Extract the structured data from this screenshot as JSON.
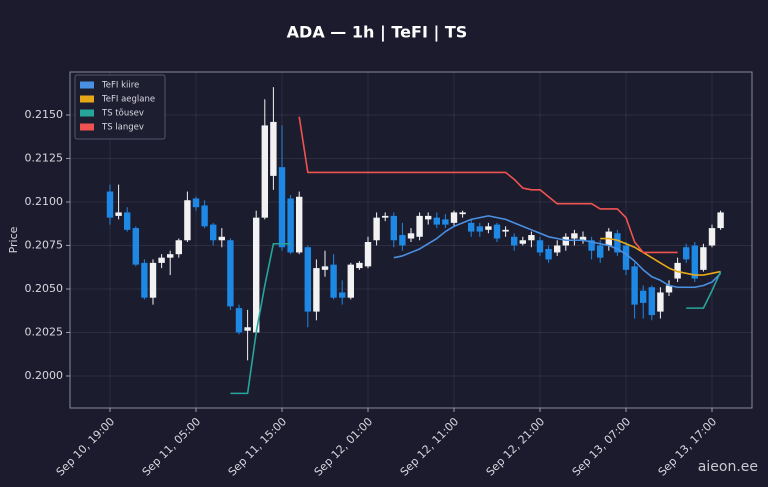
{
  "chart_data": {
    "type": "candlestick",
    "title": "ADA — 1h  |  TeFI  |  TS",
    "y_label": "Price",
    "watermark": "aieon.ee",
    "up_color": "#f2f2f2",
    "down_color": "#1e88e5",
    "grid": true,
    "legend": "upper-left",
    "ylim": [
      0.19816,
      0.21747
    ],
    "yticks": [
      {
        "value": 0.2,
        "label": "0.2000"
      },
      {
        "value": 0.2025,
        "label": "0.2025"
      },
      {
        "value": 0.205,
        "label": "0.2050"
      },
      {
        "value": 0.2075,
        "label": "0.2075"
      },
      {
        "value": 0.21,
        "label": "0.2100"
      },
      {
        "value": 0.2125,
        "label": "0.2125"
      },
      {
        "value": 0.215,
        "label": "0.2150"
      }
    ],
    "categories": [
      "Sep 10, 19:00",
      null,
      null,
      null,
      null,
      null,
      null,
      null,
      null,
      null,
      "Sep 11, 05:00",
      null,
      null,
      null,
      null,
      null,
      null,
      null,
      null,
      null,
      "Sep 11, 15:00",
      null,
      null,
      null,
      null,
      null,
      null,
      null,
      null,
      null,
      "Sep 12, 01:00",
      null,
      null,
      null,
      null,
      null,
      null,
      null,
      null,
      null,
      "Sep 12, 11:00",
      null,
      null,
      null,
      null,
      null,
      null,
      null,
      null,
      null,
      "Sep 12, 21:00",
      null,
      null,
      null,
      null,
      null,
      null,
      null,
      null,
      null,
      "Sep 13, 07:00",
      null,
      null,
      null,
      null,
      null,
      null,
      null,
      null,
      null,
      "Sep 13, 17:00",
      null
    ],
    "open": [
      0.2106,
      0.2092,
      0.2094,
      0.2085,
      0.2065,
      0.2045,
      0.2065,
      0.2068,
      0.207,
      0.2078,
      0.2102,
      0.2098,
      0.2087,
      0.2078,
      0.2078,
      0.2039,
      0.2026,
      0.2025,
      0.2091,
      0.2115,
      0.212,
      0.2102,
      0.2071,
      0.2074,
      0.2037,
      0.2061,
      0.2064,
      0.2048,
      0.2045,
      0.2062,
      0.2063,
      0.2078,
      0.2091,
      0.2092,
      0.2081,
      0.2079,
      0.208,
      0.209,
      0.2091,
      0.209,
      0.2088,
      0.2093,
      0.2088,
      0.2086,
      0.2084,
      0.2087,
      0.2083,
      0.208,
      0.2076,
      0.2078,
      0.2078,
      0.2073,
      0.2071,
      0.2075,
      0.2079,
      0.2078,
      0.2078,
      0.2075,
      0.2075,
      0.2082,
      0.2075,
      0.2063,
      0.2049,
      0.2051,
      0.2037,
      0.2048,
      0.2056,
      0.2074,
      0.2075,
      0.2061,
      0.2075,
      0.2085
    ],
    "high": [
      0.211,
      0.211,
      0.2097,
      0.2086,
      0.2067,
      0.2067,
      0.207,
      0.2072,
      0.2079,
      0.2106,
      0.2103,
      0.2101,
      0.2088,
      0.2085,
      0.2079,
      0.2041,
      0.2038,
      0.2095,
      0.2159,
      0.2166,
      0.2144,
      0.2104,
      0.2106,
      0.2075,
      0.2067,
      0.2072,
      0.207,
      0.2055,
      0.2065,
      0.2066,
      0.208,
      0.2094,
      0.2094,
      0.2094,
      0.2088,
      0.2085,
      0.2094,
      0.2094,
      0.2094,
      0.2093,
      0.2095,
      0.2095,
      0.209,
      0.2088,
      0.2088,
      0.2088,
      0.2086,
      0.2082,
      0.208,
      0.2083,
      0.208,
      0.2075,
      0.2078,
      0.2082,
      0.2084,
      0.2083,
      0.208,
      0.2078,
      0.2085,
      0.2084,
      0.2077,
      0.2065,
      0.2052,
      0.2052,
      0.2051,
      0.2055,
      0.2068,
      0.2076,
      0.2077,
      0.2076,
      0.2087,
      0.2095
    ],
    "low": [
      0.2087,
      0.209,
      0.2083,
      0.2063,
      0.2044,
      0.2041,
      0.2062,
      0.2058,
      0.2068,
      0.2077,
      0.2095,
      0.2085,
      0.2075,
      0.2074,
      0.2038,
      0.2024,
      0.2009,
      0.2024,
      0.209,
      0.2107,
      0.2072,
      0.207,
      0.207,
      0.2028,
      0.2032,
      0.2057,
      0.2044,
      0.2041,
      0.2044,
      0.2061,
      0.2062,
      0.2075,
      0.2089,
      0.2074,
      0.2072,
      0.2077,
      0.2078,
      0.2087,
      0.2085,
      0.2085,
      0.2086,
      0.2091,
      0.208,
      0.208,
      0.2082,
      0.2077,
      0.208,
      0.2072,
      0.2075,
      0.2074,
      0.2069,
      0.2065,
      0.2069,
      0.2072,
      0.2075,
      0.2076,
      0.2067,
      0.2065,
      0.2072,
      0.2069,
      0.2058,
      0.2033,
      0.2033,
      0.2032,
      0.2033,
      0.2046,
      0.2054,
      0.2065,
      0.2054,
      0.206,
      0.2074,
      0.2084
    ],
    "close": [
      0.2091,
      0.2094,
      0.2084,
      0.2064,
      0.2045,
      0.2065,
      0.2068,
      0.207,
      0.2078,
      0.2101,
      0.2097,
      0.2086,
      0.2078,
      0.208,
      0.204,
      0.2025,
      0.2028,
      0.2091,
      0.2144,
      0.2146,
      0.2074,
      0.2071,
      0.2103,
      0.2037,
      0.2062,
      0.2063,
      0.2045,
      0.2045,
      0.2064,
      0.2065,
      0.2077,
      0.2091,
      0.2092,
      0.2078,
      0.2075,
      0.2082,
      0.2092,
      0.2092,
      0.2087,
      0.2087,
      0.2094,
      0.2094,
      0.2083,
      0.2083,
      0.2086,
      0.2079,
      0.2084,
      0.2075,
      0.2078,
      0.2081,
      0.2071,
      0.2067,
      0.2075,
      0.208,
      0.2082,
      0.208,
      0.2072,
      0.2068,
      0.2083,
      0.2071,
      0.2061,
      0.2041,
      0.2042,
      0.2035,
      0.2048,
      0.2052,
      0.2065,
      0.2067,
      0.2056,
      0.2074,
      0.2085,
      0.2094
    ],
    "series": [
      {
        "name": "TeFI kiire",
        "color": "#4a90e2",
        "values": [
          null,
          null,
          null,
          null,
          null,
          null,
          null,
          null,
          null,
          null,
          null,
          null,
          null,
          null,
          null,
          null,
          null,
          null,
          null,
          null,
          null,
          null,
          null,
          null,
          null,
          null,
          null,
          null,
          null,
          null,
          null,
          null,
          null,
          0.2068,
          0.2069,
          0.2071,
          0.2073,
          0.2076,
          0.2079,
          0.2083,
          0.2086,
          0.2088,
          0.209,
          0.2091,
          0.2092,
          0.2091,
          0.209,
          0.2088,
          0.2086,
          0.2084,
          0.2082,
          0.208,
          0.2079,
          0.2078,
          0.2078,
          0.2078,
          0.2077,
          0.2076,
          0.2075,
          0.2073,
          0.207,
          0.2066,
          0.2061,
          0.2057,
          0.2055,
          0.2052,
          0.2051,
          0.2051,
          0.2051,
          0.2052,
          0.2054,
          0.2059
        ]
      },
      {
        "name": "TeFI aeglane",
        "color": "#e6a817",
        "values": [
          null,
          null,
          null,
          null,
          null,
          null,
          null,
          null,
          null,
          null,
          null,
          null,
          null,
          null,
          null,
          null,
          null,
          null,
          null,
          null,
          null,
          null,
          null,
          null,
          null,
          null,
          null,
          null,
          null,
          null,
          null,
          null,
          null,
          null,
          null,
          null,
          null,
          null,
          null,
          null,
          null,
          null,
          null,
          null,
          null,
          null,
          null,
          null,
          null,
          null,
          null,
          null,
          null,
          null,
          null,
          null,
          null,
          0.2079,
          0.2079,
          0.2078,
          0.2076,
          0.2074,
          0.2071,
          0.2068,
          0.2065,
          0.2062,
          0.206,
          0.2059,
          0.2058,
          0.2058,
          0.2059,
          0.206
        ]
      },
      {
        "name": "TS tõusev",
        "color": "#26a69a",
        "values": [
          null,
          null,
          null,
          null,
          null,
          null,
          null,
          null,
          null,
          null,
          null,
          null,
          null,
          null,
          0.199,
          0.199,
          0.199,
          0.2025,
          0.2052,
          0.2076,
          0.2076,
          0.2076,
          null,
          null,
          null,
          null,
          null,
          null,
          null,
          null,
          null,
          null,
          null,
          null,
          null,
          null,
          null,
          null,
          null,
          null,
          null,
          null,
          null,
          null,
          null,
          null,
          null,
          null,
          null,
          null,
          null,
          null,
          null,
          null,
          null,
          null,
          null,
          null,
          null,
          null,
          null,
          null,
          null,
          null,
          null,
          null,
          null,
          0.2039,
          0.2039,
          0.2039,
          0.2049,
          0.206
        ]
      },
      {
        "name": "TS langev",
        "color": "#ef5350",
        "values": [
          null,
          null,
          null,
          null,
          null,
          null,
          null,
          null,
          null,
          null,
          null,
          null,
          null,
          null,
          null,
          null,
          null,
          null,
          null,
          null,
          null,
          null,
          0.2149,
          0.2117,
          0.2117,
          0.2117,
          0.2117,
          0.2117,
          0.2117,
          0.2117,
          0.2117,
          0.2117,
          0.2117,
          0.2117,
          0.2117,
          0.2117,
          0.2117,
          0.2117,
          0.2117,
          0.2117,
          0.2117,
          0.2117,
          0.2117,
          0.2117,
          0.2117,
          0.2117,
          0.2117,
          0.2113,
          0.2108,
          0.2107,
          0.2107,
          0.2103,
          0.2099,
          0.2099,
          0.2099,
          0.2099,
          0.2099,
          0.2096,
          0.2096,
          0.2096,
          0.2091,
          0.2077,
          0.2071,
          0.2071,
          0.2071,
          0.2071,
          0.2071,
          null,
          null,
          null,
          null,
          null
        ]
      }
    ]
  }
}
